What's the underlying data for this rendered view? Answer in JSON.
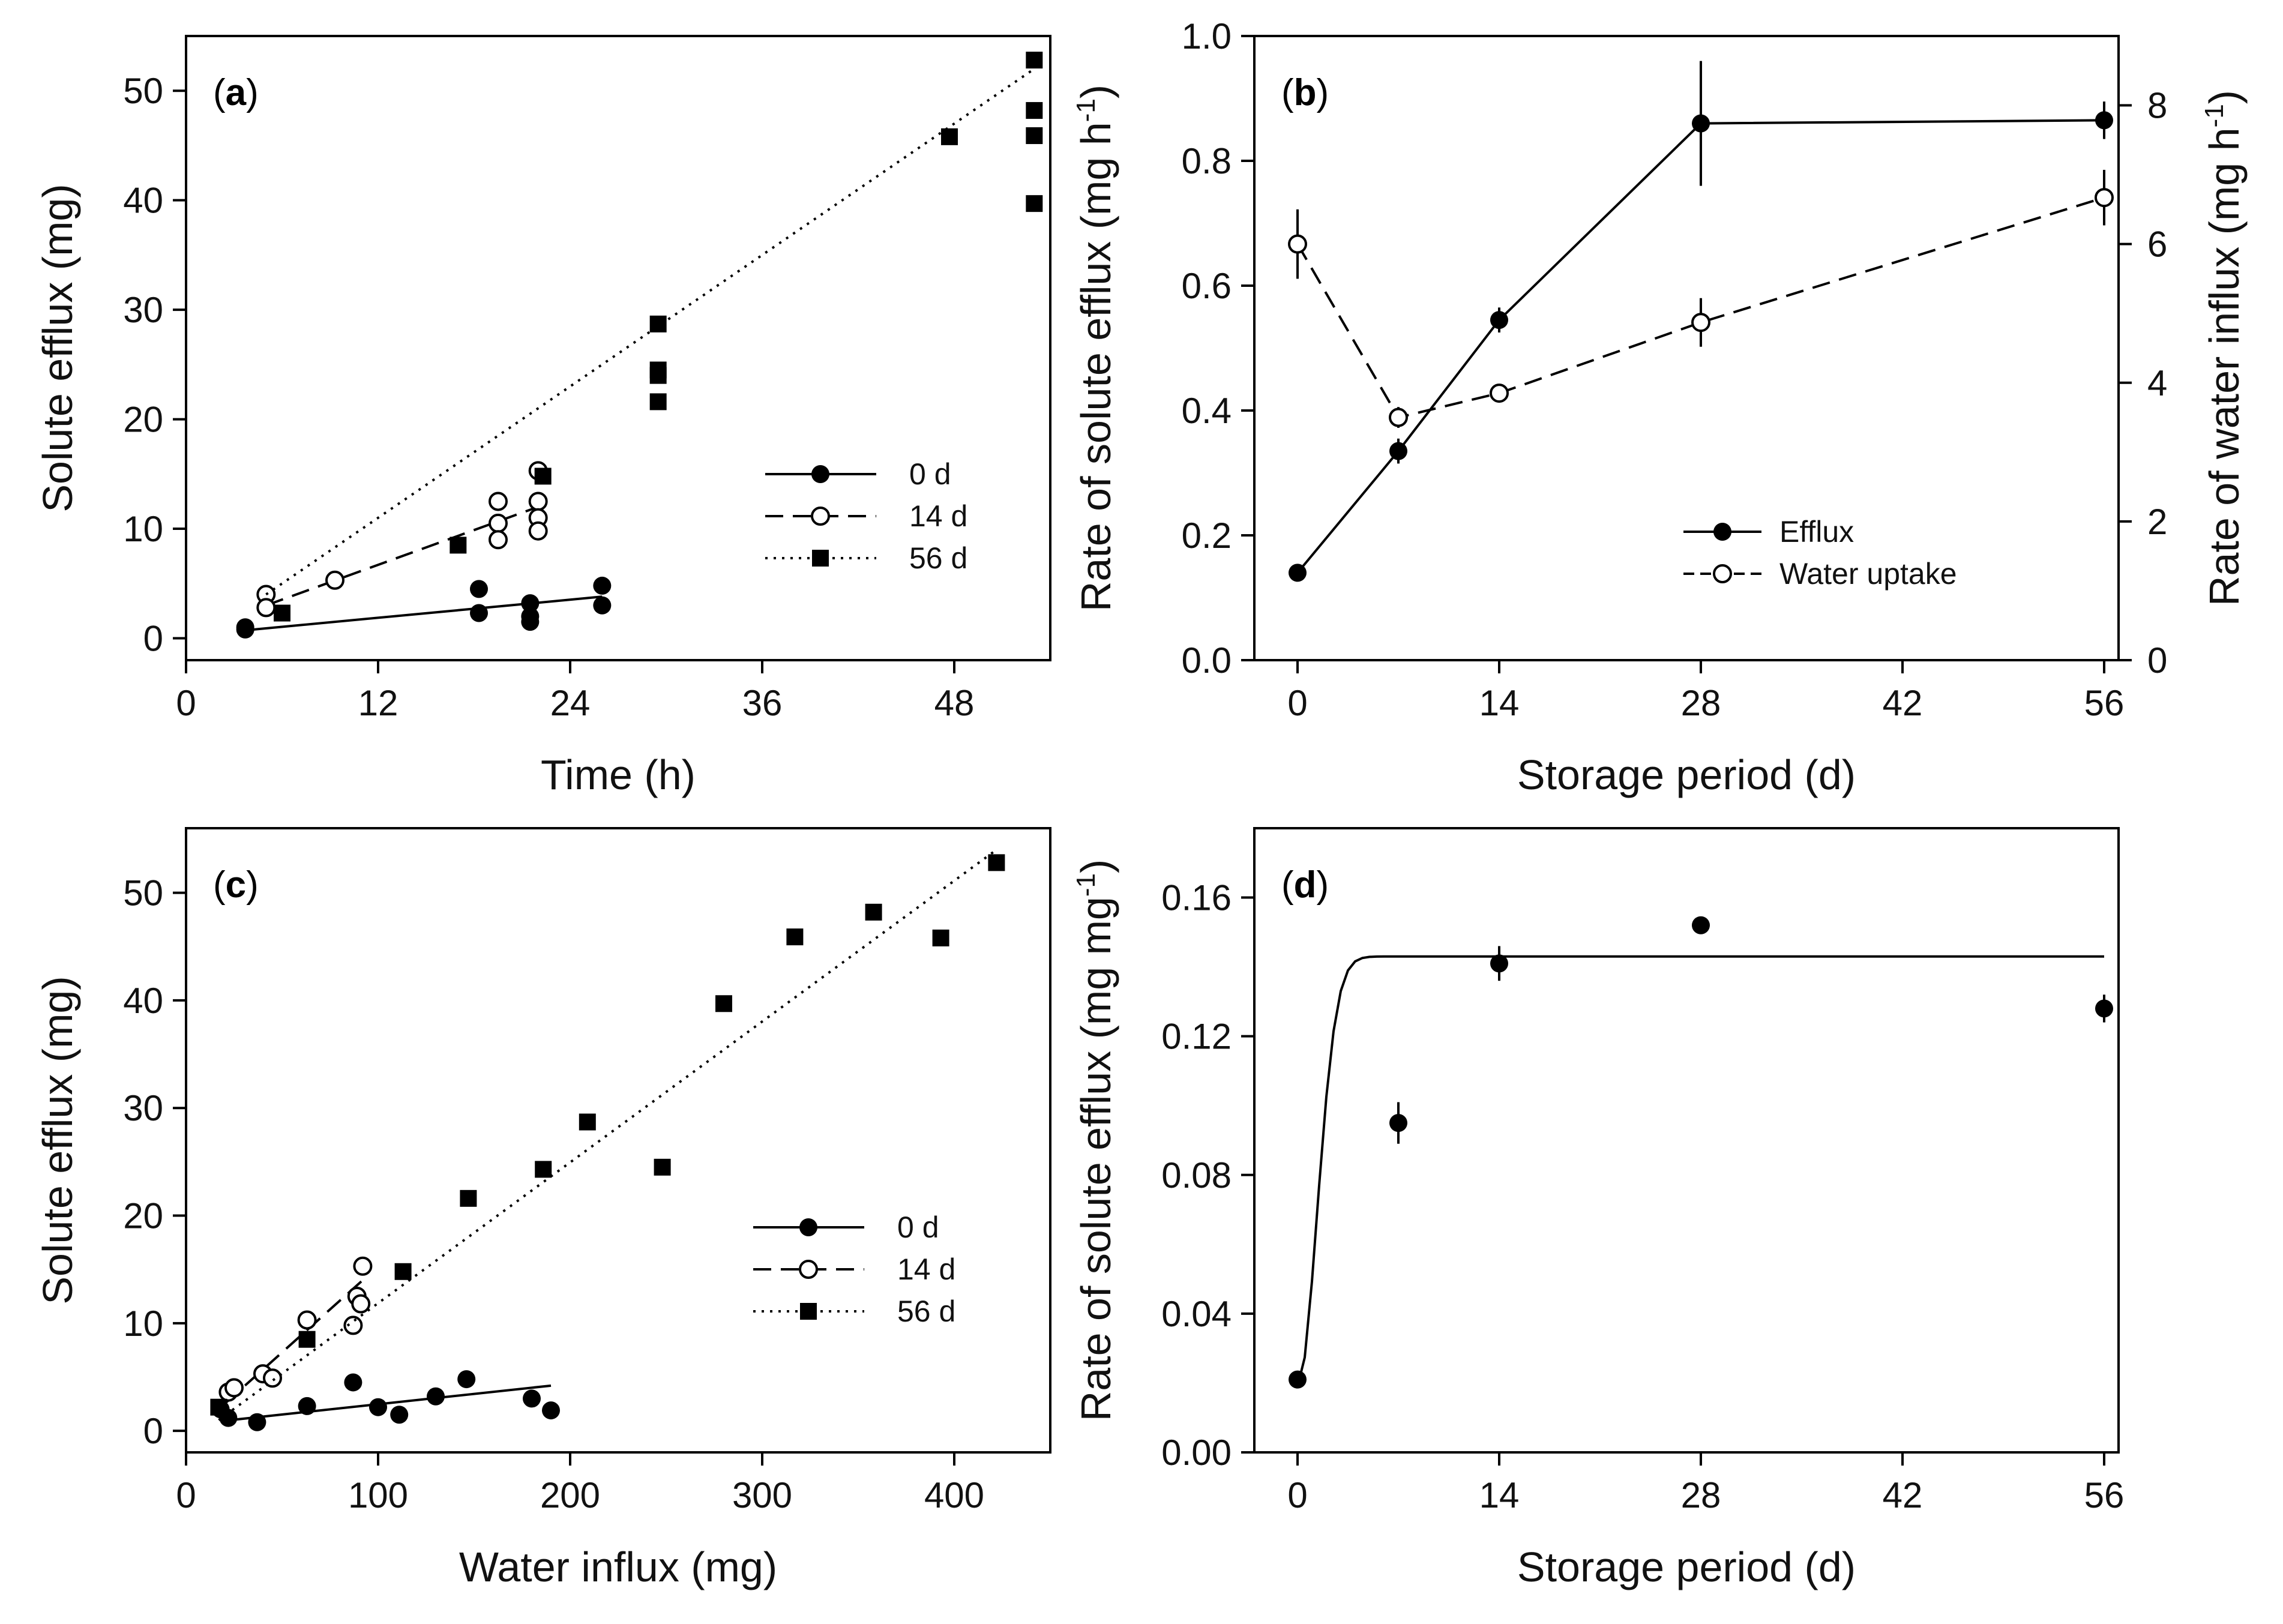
{
  "chart_data": [
    {
      "panel": "a",
      "type": "scatter",
      "panel_label": "a",
      "xlabel": "Time (h)",
      "ylabel": "Solute efflux (mg)",
      "xlim": [
        0,
        54
      ],
      "ylim": [
        -2,
        55
      ],
      "xticks": [
        0,
        12,
        24,
        36,
        48
      ],
      "yticks": [
        0,
        10,
        20,
        30,
        40,
        50
      ],
      "series": [
        {
          "name": "0 d",
          "marker": "filled-circle",
          "line": "solid",
          "x": [
            3.7,
            3.7,
            18.3,
            18.3,
            21.5,
            21.5,
            21.5,
            26.0,
            26.0
          ],
          "y": [
            1.0,
            0.8,
            4.5,
            2.3,
            3.2,
            2.0,
            1.5,
            4.8,
            3.0
          ],
          "fit": [
            [
              3.5,
              0.7
            ],
            [
              26.0,
              3.8
            ]
          ]
        },
        {
          "name": "14 d",
          "marker": "open-circle",
          "line": "dashed",
          "x": [
            5.0,
            5.0,
            9.3,
            19.5,
            19.5,
            19.5,
            22.0,
            22.0,
            22.0,
            22.0
          ],
          "y": [
            4.0,
            2.8,
            5.3,
            12.5,
            10.5,
            9.0,
            15.3,
            12.5,
            11.0,
            9.8
          ],
          "fit": [
            [
              5.0,
              3.0
            ],
            [
              22.0,
              12.0
            ]
          ]
        },
        {
          "name": "56 d",
          "marker": "filled-square",
          "line": "dotted",
          "x": [
            6.0,
            17.0,
            22.3,
            29.5,
            29.5,
            29.5,
            29.5,
            47.7,
            53.0,
            53.0,
            53.0,
            53.0
          ],
          "y": [
            2.3,
            8.5,
            14.8,
            28.7,
            24.5,
            24.0,
            21.6,
            45.8,
            52.8,
            48.2,
            45.9,
            39.7
          ],
          "fit": [
            [
              5.0,
              4.0
            ],
            [
              53.0,
              52.0
            ]
          ]
        }
      ]
    },
    {
      "panel": "b",
      "type": "line",
      "panel_label": "b",
      "xlabel": "Storage period (d)",
      "ylabel": "Rate of solute efflux (mg h-1)",
      "y2label": "Rate of water influx (mg h-1)",
      "xlim": [
        -3,
        57
      ],
      "ylim": [
        0,
        1.0
      ],
      "y2lim": [
        0,
        9.0
      ],
      "xticks": [
        0,
        14,
        28,
        42,
        56
      ],
      "yticks": [
        0.0,
        0.2,
        0.4,
        0.6,
        0.8,
        1.0
      ],
      "yticklabels": [
        "0.0",
        "0.2",
        "0.4",
        "0.6",
        "0.8",
        "1.0"
      ],
      "y2ticks": [
        0,
        2,
        4,
        6,
        8
      ],
      "legend_position": "lower-right",
      "series": [
        {
          "name": "Efflux",
          "axis": "left",
          "marker": "filled-circle",
          "line": "solid",
          "x": [
            0,
            7,
            14,
            28,
            56
          ],
          "y": [
            0.14,
            0.335,
            0.545,
            0.86,
            0.865
          ],
          "err": [
            0.01,
            0.02,
            0.02,
            0.1,
            0.03
          ]
        },
        {
          "name": "Water uptake",
          "axis": "right",
          "marker": "open-circle",
          "line": "dashed",
          "x": [
            0,
            7,
            14,
            28,
            56
          ],
          "y": [
            6.0,
            3.5,
            3.85,
            4.87,
            6.67
          ],
          "err": [
            0.5,
            0.15,
            0.1,
            0.35,
            0.4
          ]
        }
      ]
    },
    {
      "panel": "c",
      "type": "scatter",
      "panel_label": "c",
      "xlabel": "Water influx (mg)",
      "ylabel": "Solute efflux (mg)",
      "xlim": [
        0,
        450
      ],
      "ylim": [
        -2,
        56
      ],
      "xticks": [
        0,
        100,
        200,
        300,
        400
      ],
      "yticks": [
        0,
        10,
        20,
        30,
        40,
        50
      ],
      "series": [
        {
          "name": "0 d",
          "marker": "filled-circle",
          "line": "solid",
          "x": [
            18,
            22,
            37,
            63,
            87,
            100,
            111,
            130,
            146,
            180,
            190
          ],
          "y": [
            2.0,
            1.2,
            0.8,
            2.3,
            4.5,
            2.2,
            1.5,
            3.2,
            4.8,
            3.0,
            1.9
          ],
          "fit": [
            [
              18,
              0.9
            ],
            [
              190,
              4.2
            ]
          ]
        },
        {
          "name": "14 d",
          "marker": "open-circle",
          "line": "dashed",
          "x": [
            22,
            25,
            40,
            45,
            63,
            87,
            89,
            91,
            92
          ],
          "y": [
            3.6,
            4.0,
            5.3,
            4.9,
            10.3,
            9.8,
            12.5,
            11.8,
            15.3
          ],
          "fit": [
            [
              20,
              2.5
            ],
            [
              92,
              14.0
            ]
          ]
        },
        {
          "name": "56 d",
          "marker": "filled-square",
          "line": "dotted",
          "x": [
            17,
            63,
            113,
            147,
            186,
            209,
            248,
            280,
            317,
            358,
            393,
            422
          ],
          "y": [
            2.2,
            8.5,
            14.8,
            21.6,
            24.3,
            28.7,
            24.5,
            39.7,
            45.9,
            48.2,
            45.8,
            52.8
          ],
          "fit": [
            [
              17,
              1.0
            ],
            [
              422,
              54.0
            ]
          ]
        }
      ]
    },
    {
      "panel": "d",
      "type": "scatter",
      "panel_label": "d",
      "xlabel": "Storage period (d)",
      "ylabel": "Rate of solute efflux (mg mg-1)",
      "xlim": [
        -3,
        57
      ],
      "ylim": [
        0,
        0.18
      ],
      "xticks": [
        0,
        14,
        28,
        42,
        56
      ],
      "yticks": [
        0.0,
        0.04,
        0.08,
        0.12,
        0.16
      ],
      "yticklabels": [
        "0.00",
        "0.04",
        "0.08",
        "0.12",
        "0.16"
      ],
      "series": [
        {
          "name": "",
          "marker": "filled-circle",
          "line": "none",
          "x": [
            0,
            7,
            14,
            28,
            56
          ],
          "y": [
            0.021,
            0.095,
            0.141,
            0.152,
            0.128
          ],
          "err": [
            0.002,
            0.006,
            0.005,
            0.002,
            0.004
          ],
          "fit_curve": {
            "asymptote": 0.143,
            "y0": 0.019,
            "k": 0.28,
            "xmax": 56
          }
        }
      ]
    }
  ]
}
